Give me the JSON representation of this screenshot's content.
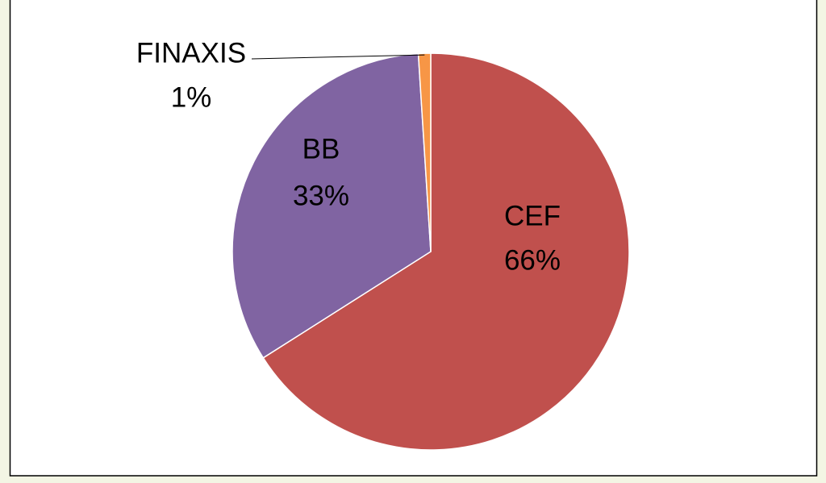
{
  "chart_data": {
    "type": "pie",
    "categories": [
      "CEF",
      "BB",
      "FINAXIS"
    ],
    "values": [
      66,
      33,
      1
    ],
    "value_labels": [
      "66%",
      "33%",
      "1%"
    ],
    "colors": [
      "#c0504d",
      "#8064a2",
      "#f79646"
    ]
  }
}
